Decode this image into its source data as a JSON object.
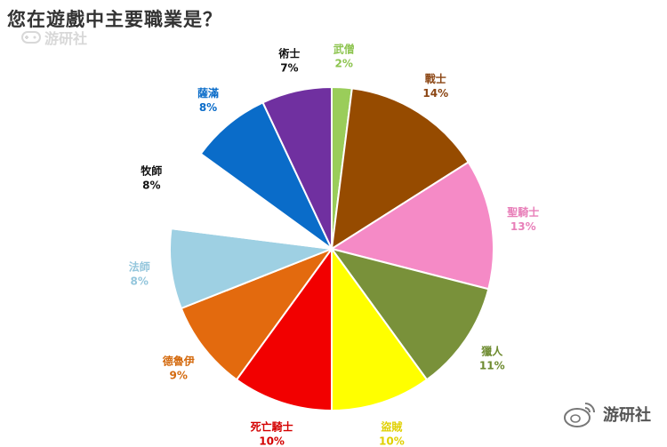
{
  "title": "您在遊戲中主要職業是？",
  "watermarks": {
    "top": "游研社",
    "bottom": "游研社",
    "top_icon": "controller-icon",
    "bottom_icon": "weibo-logo-icon"
  },
  "chart_data": {
    "type": "pie",
    "title": "您在遊戲中主要職業是？",
    "start_angle_deg": 0,
    "direction": "clockwise",
    "slices": [
      {
        "label": "武僧",
        "value": 2,
        "display": "2%",
        "color": "#9ACD5A",
        "label_color": "#8DC44F"
      },
      {
        "label": "戰士",
        "value": 14,
        "display": "14%",
        "color": "#964B00",
        "label_color": "#8B4513"
      },
      {
        "label": "聖騎士",
        "value": 13,
        "display": "13%",
        "color": "#F58AC6",
        "label_color": "#E87FB9"
      },
      {
        "label": "獵人",
        "value": 11,
        "display": "11%",
        "color": "#79913A",
        "label_color": "#6E8B30"
      },
      {
        "label": "盜賊",
        "value": 10,
        "display": "10%",
        "color": "#FFFF00",
        "label_color": "#E0D000"
      },
      {
        "label": "死亡騎士",
        "value": 10,
        "display": "10%",
        "color": "#F20000",
        "label_color": "#D40000"
      },
      {
        "label": "德魯伊",
        "value": 9,
        "display": "9%",
        "color": "#E36A0E",
        "label_color": "#D46A0E"
      },
      {
        "label": "法師",
        "value": 8,
        "display": "8%",
        "color": "#9ED0E3",
        "label_color": "#94C6DC"
      },
      {
        "label": "牧師",
        "value": 8,
        "display": "8%",
        "color": "#FFFFFF",
        "label_color": "#111111"
      },
      {
        "label": "薩滿",
        "value": 8,
        "display": "8%",
        "color": "#0A6CC9",
        "label_color": "#0A6CC9"
      },
      {
        "label": "術士",
        "value": 7,
        "display": "7%",
        "color": "#7030A0",
        "label_color": "#111111"
      }
    ]
  }
}
